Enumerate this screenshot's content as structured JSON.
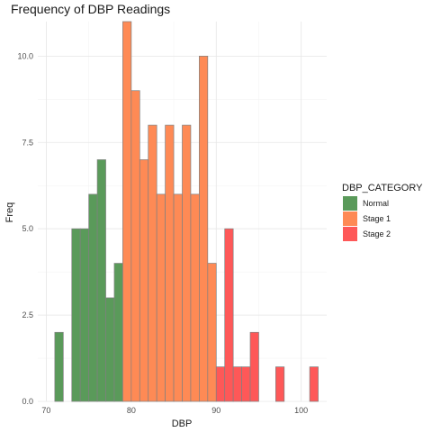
{
  "chart_data": {
    "type": "bar",
    "title": "Frequency of DBP Readings",
    "xlabel": "DBP",
    "ylabel": "Freq",
    "xlim": [
      69,
      103
    ],
    "ylim": [
      0,
      11
    ],
    "x_ticks": [
      70,
      80,
      90,
      100
    ],
    "y_ticks": [
      0,
      2.5,
      5,
      7.5,
      10
    ],
    "y_tick_labels": [
      "0.0",
      "2.5",
      "5.0",
      "7.5",
      "10.0"
    ],
    "grid": true,
    "legend": {
      "title": "DBP_CATEGORY",
      "placement": "right",
      "entries": [
        {
          "name": "Normal",
          "color": "#5a9a5a"
        },
        {
          "name": "Stage 1",
          "color": "#fe8a55"
        },
        {
          "name": "Stage 2",
          "color": "#fe5858"
        }
      ]
    },
    "bin_width": 1.0,
    "bins": [
      {
        "x": 71.5,
        "value": 2,
        "category": "Normal"
      },
      {
        "x": 72.5,
        "value": 0,
        "category": "Normal"
      },
      {
        "x": 73.5,
        "value": 5,
        "category": "Normal"
      },
      {
        "x": 74.5,
        "value": 5,
        "category": "Normal"
      },
      {
        "x": 75.5,
        "value": 6,
        "category": "Normal"
      },
      {
        "x": 76.5,
        "value": 7,
        "category": "Normal"
      },
      {
        "x": 77.5,
        "value": 3,
        "category": "Normal"
      },
      {
        "x": 78.5,
        "value": 4,
        "category": "Normal"
      },
      {
        "x": 79.5,
        "value": 11,
        "category": "Stage 1"
      },
      {
        "x": 80.5,
        "value": 9,
        "category": "Stage 1"
      },
      {
        "x": 81.5,
        "value": 7,
        "category": "Stage 1"
      },
      {
        "x": 82.5,
        "value": 8,
        "category": "Stage 1"
      },
      {
        "x": 83.5,
        "value": 6,
        "category": "Stage 1"
      },
      {
        "x": 84.5,
        "value": 8,
        "category": "Stage 1"
      },
      {
        "x": 85.5,
        "value": 6,
        "category": "Stage 1"
      },
      {
        "x": 86.5,
        "value": 8,
        "category": "Stage 1"
      },
      {
        "x": 87.5,
        "value": 6,
        "category": "Stage 1"
      },
      {
        "x": 88.5,
        "value": 10,
        "category": "Stage 1"
      },
      {
        "x": 89.5,
        "value": 4,
        "category": "Stage 1"
      },
      {
        "x": 90.5,
        "value": 1,
        "category": "Stage 2"
      },
      {
        "x": 91.5,
        "value": 5,
        "category": "Stage 2"
      },
      {
        "x": 92.5,
        "value": 1,
        "category": "Stage 2"
      },
      {
        "x": 93.5,
        "value": 1,
        "category": "Stage 2"
      },
      {
        "x": 94.5,
        "value": 2,
        "category": "Stage 2"
      },
      {
        "x": 95.5,
        "value": 0,
        "category": "Stage 2"
      },
      {
        "x": 96.5,
        "value": 0,
        "category": "Stage 2"
      },
      {
        "x": 97.5,
        "value": 1,
        "category": "Stage 2"
      },
      {
        "x": 98.5,
        "value": 0,
        "category": "Stage 2"
      },
      {
        "x": 99.5,
        "value": 0,
        "category": "Stage 2"
      },
      {
        "x": 100.5,
        "value": 0,
        "category": "Stage 2"
      },
      {
        "x": 101.5,
        "value": 1,
        "category": "Stage 2"
      }
    ]
  }
}
